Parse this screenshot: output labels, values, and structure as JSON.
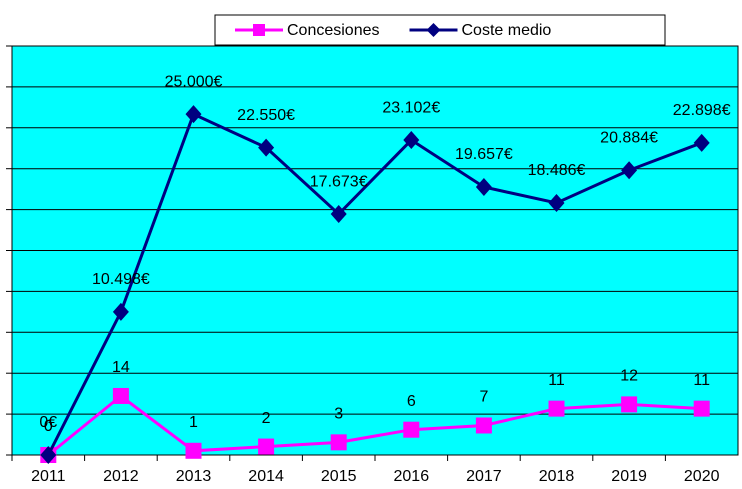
{
  "chart_data": {
    "type": "line",
    "categories": [
      "2011",
      "2012",
      "2013",
      "2014",
      "2015",
      "2016",
      "2017",
      "2018",
      "2019",
      "2020"
    ],
    "series": [
      {
        "name": "Concesiones",
        "color": "#ff00ff",
        "marker": "square",
        "axis": "y2",
        "values": [
          0,
          14,
          1,
          2,
          3,
          6,
          7,
          11,
          12,
          11
        ]
      },
      {
        "name": "Coste medio",
        "color": "#000080",
        "marker": "diamond",
        "values": [
          0,
          10498,
          25000,
          22550,
          17673,
          23102,
          19657,
          18486,
          20884,
          22898
        ],
        "value_labels": [
          "0€",
          "10.498€",
          "25.000€",
          "22.550€",
          "17.673€",
          "23.102€",
          "19.657€",
          "18.486€",
          "20.884€",
          "22.898€"
        ]
      }
    ],
    "ylim": [
      0,
      30000
    ],
    "yticks": [
      0,
      3000,
      6000,
      9000,
      12000,
      15000,
      18000,
      21000,
      24000,
      27000,
      30000
    ],
    "y2lim": [
      0,
      97
    ],
    "grid": true,
    "legend": "top",
    "background": "#00ffff"
  }
}
